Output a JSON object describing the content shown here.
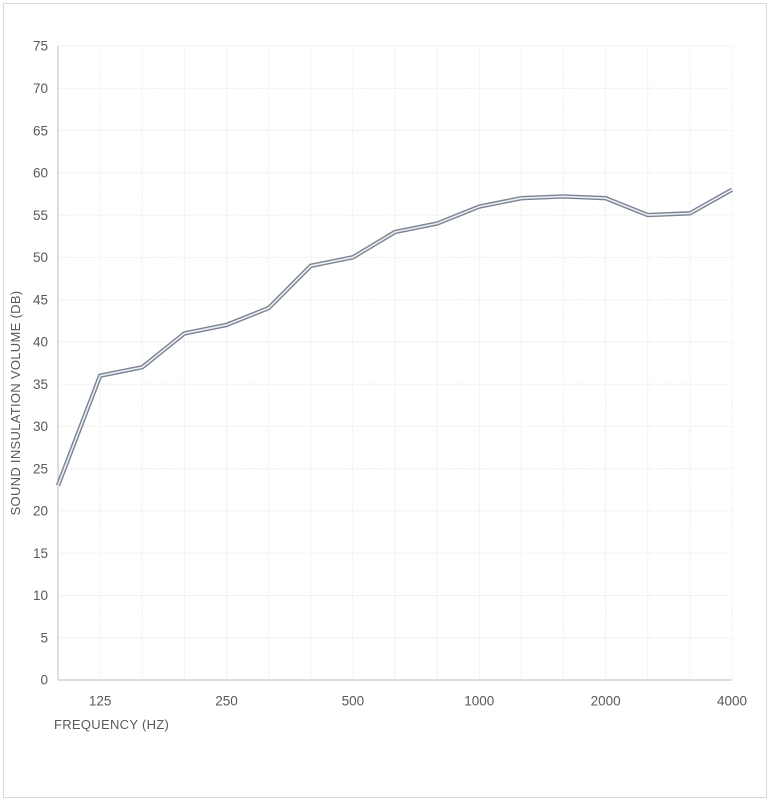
{
  "chart_data": {
    "type": "line",
    "title": "",
    "xlabel": "FREQUENCY (HZ)",
    "ylabel": "SOUND INSULATION VOLUME (DB)",
    "x_scale": "log-third-octave",
    "categories": [
      100,
      125,
      160,
      200,
      250,
      315,
      400,
      500,
      630,
      800,
      1000,
      1250,
      1600,
      2000,
      2500,
      3150,
      4000
    ],
    "values": [
      23,
      36,
      37,
      41,
      42,
      44,
      49,
      50,
      53,
      54,
      56,
      57,
      57.2,
      57,
      55,
      55.2,
      58
    ],
    "x_tick_labels": [
      "125",
      "250",
      "500",
      "1000",
      "2000",
      "4000"
    ],
    "x_tick_values": [
      125,
      250,
      500,
      1000,
      2000,
      4000
    ],
    "ylim": [
      0,
      75
    ],
    "y_tick_step": 5,
    "grid": "both",
    "legend": "none"
  },
  "style": {
    "line_outer_color": "#7a8394",
    "line_inner_color": "#edeef1",
    "grid_color": "#e0e0e0",
    "axis_color": "#c9c9c9",
    "text_color": "#595959",
    "page_border_color": "#d9d9d9",
    "background_color": "#ffffff"
  }
}
